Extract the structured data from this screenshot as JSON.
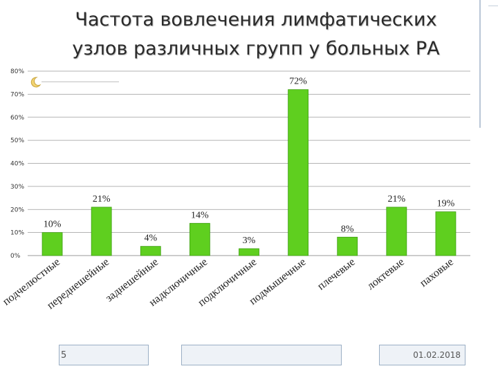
{
  "slide": {
    "title_line1": "Частота вовлечения лимфатических",
    "title_line2": "узлов различных групп у больных РА",
    "slide_number": "5",
    "date": "01.02.2018"
  },
  "colors": {
    "bar_fill": "#5fcf1f",
    "bar_edge": "#3e9e12",
    "grid": "#9a9a9a",
    "footer_border": "#9aaec4"
  },
  "chart_data": {
    "type": "bar",
    "title": "",
    "xlabel": "",
    "ylabel": "",
    "ylim": [
      0,
      80
    ],
    "yticks": [
      "0%",
      "10%",
      "20%",
      "30%",
      "40%",
      "50%",
      "60%",
      "70%",
      "80%"
    ],
    "grid": true,
    "categories": [
      "подчелюстные",
      "переднешейные",
      "заднешейные",
      "надключичные",
      "подключичные",
      "подмышечные",
      "плечевые",
      "локтевые",
      "паховые"
    ],
    "values": [
      10,
      21,
      4,
      14,
      3,
      72,
      8,
      21,
      19
    ],
    "data_labels": [
      "10%",
      "21%",
      "4%",
      "14%",
      "3%",
      "72%",
      "8%",
      "21%",
      "19%"
    ]
  }
}
